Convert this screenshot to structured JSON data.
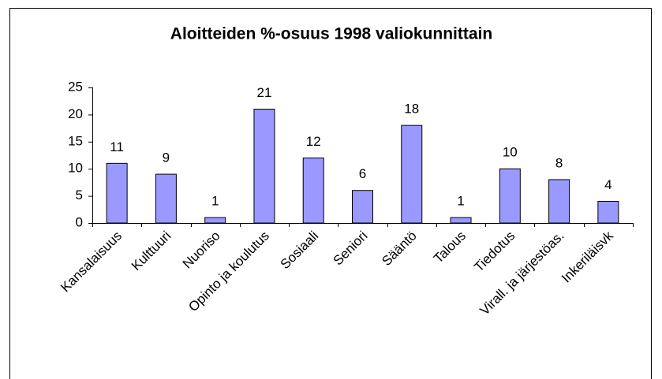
{
  "chart_data": {
    "type": "bar",
    "title": "Aloitteiden %-osuus 1998 valiokunnittain",
    "categories": [
      "Kansalaisuus",
      "Kulttuuri",
      "Nuoriso",
      "Opinto ja koulutus",
      "Sosiaali",
      "Seniori",
      "Sääntö",
      "Talous",
      "Tiedotus",
      "Virall. ja järjestöas.",
      "Inkeriläisvk"
    ],
    "values": [
      11,
      9,
      1,
      21,
      12,
      6,
      18,
      1,
      10,
      8,
      4
    ],
    "color": "#9999ff",
    "ylim": [
      0,
      25
    ],
    "yticks": [
      0,
      5,
      10,
      15,
      20,
      25
    ],
    "grid": false
  }
}
